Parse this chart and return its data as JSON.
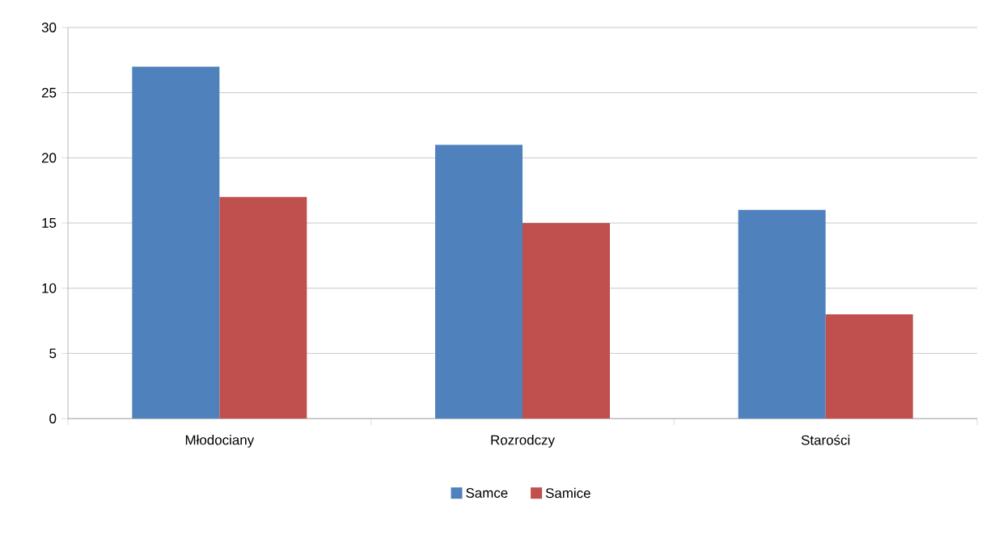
{
  "chart_data": {
    "type": "bar",
    "categories": [
      "Młodociany",
      "Rozrodczy",
      "Starości"
    ],
    "series": [
      {
        "name": "Samce",
        "color": "#4f81bd",
        "values": [
          27,
          21,
          16
        ]
      },
      {
        "name": "Samice",
        "color": "#c0504d",
        "values": [
          17,
          15,
          8
        ]
      }
    ],
    "ylim": [
      0,
      30
    ],
    "yticks": [
      0,
      5,
      10,
      15,
      20,
      25,
      30
    ],
    "grid": "y",
    "legend": "bottom"
  }
}
